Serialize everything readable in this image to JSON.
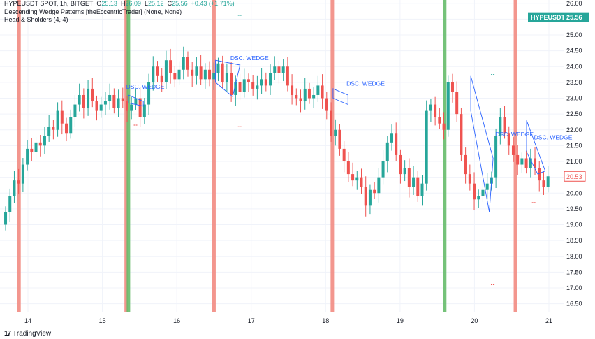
{
  "legend": {
    "symbol": "HYPEUSDT SPOT, 1h, BITGET",
    "o_label": "O",
    "o": "25.13",
    "h_label": "H",
    "h": "26.09",
    "l_label": "L",
    "l": "25.12",
    "c_label": "C",
    "c": "25.56",
    "change": "+0.43 (+1.71%)",
    "indicator1": "Descending Wedge Patterns [theEccentricTrader] (None, None)",
    "indicator2": "Head & Sholders (4, 4)"
  },
  "footer": {
    "logo": "17",
    "brand": "TradingView"
  },
  "colors": {
    "up": "#26a69a",
    "down": "#ef5350",
    "red_band": "#f28b82",
    "green_band": "#66bb6a",
    "wedge": "#2962ff",
    "price_badge": "#26a69a",
    "last_badge": "#ef5350"
  },
  "chart_data": {
    "type": "candlestick",
    "y_axis_ticks": [
      "26.00",
      "25.50",
      "25.00",
      "24.50",
      "24.00",
      "23.50",
      "23.00",
      "22.50",
      "22.00",
      "21.50",
      "21.00",
      "20.50",
      "20.00",
      "19.50",
      "19.00",
      "18.50",
      "18.00",
      "17.50",
      "17.00",
      "16.50"
    ],
    "ylim": [
      16.3,
      26.15
    ],
    "x_axis_ticks": [
      {
        "label": "14",
        "day": 14
      },
      {
        "label": "15",
        "day": 15
      },
      {
        "label": "16",
        "day": 16
      },
      {
        "label": "17",
        "day": 17
      },
      {
        "label": "18",
        "day": 18
      },
      {
        "label": "19",
        "day": 19
      },
      {
        "label": "20",
        "day": 20
      },
      {
        "label": "21",
        "day": 21
      }
    ],
    "xlim": [
      13.65,
      21.15
    ],
    "price_badges": [
      {
        "symbol": "HYPEUSDT",
        "value": "25.56",
        "price": 25.56,
        "color": "#26a69a"
      },
      {
        "symbol": "",
        "value": "20.53",
        "price": 20.53,
        "color": "#ef5350"
      }
    ],
    "red_bands": [
      13.88,
      15.32,
      16.5,
      18.09,
      20.55
    ],
    "green_bands": [
      15.35,
      19.6
    ],
    "pattern_labels": [
      {
        "text": "DSC. WEDGE",
        "day": 15.32,
        "price": 23.3
      },
      {
        "text": "DSC. WEDGE",
        "day": 16.72,
        "price": 24.2
      },
      {
        "text": "DSC. WEDGE",
        "day": 18.28,
        "price": 23.4
      },
      {
        "text": "DSC. WEDGE",
        "day": 20.28,
        "price": 21.8
      },
      {
        "text": "DSC. WEDGE",
        "day": 20.8,
        "price": 21.7
      }
    ],
    "wedges": [
      [
        [
          15.35,
          23.1
        ],
        [
          15.55,
          22.9
        ],
        [
          15.55,
          22.75
        ],
        [
          15.35,
          22.85
        ]
      ],
      [
        [
          16.52,
          24.2
        ],
        [
          16.85,
          24.05
        ],
        [
          16.75,
          23.05
        ],
        [
          16.52,
          23.5
        ]
      ],
      [
        [
          18.1,
          23.3
        ],
        [
          18.3,
          23.1
        ],
        [
          18.3,
          22.8
        ],
        [
          18.1,
          23.0
        ]
      ],
      [
        [
          19.95,
          23.7
        ],
        [
          20.25,
          21.1
        ],
        [
          20.2,
          19.4
        ],
        [
          19.95,
          22.6
        ]
      ],
      [
        [
          20.7,
          22.3
        ],
        [
          20.95,
          20.7
        ],
        [
          20.85,
          20.6
        ],
        [
          20.7,
          21.3
        ]
      ]
    ],
    "markers": [
      {
        "day": 16.85,
        "price": 25.62,
        "color": "#26a69a"
      },
      {
        "day": 16.85,
        "price": 22.1,
        "color": "#ef5350"
      },
      {
        "day": 15.45,
        "price": 22.15,
        "color": "#ef5350"
      },
      {
        "day": 20.25,
        "price": 23.75,
        "color": "#26a69a"
      },
      {
        "day": 20.25,
        "price": 17.1,
        "color": "#ef5350"
      },
      {
        "day": 20.8,
        "price": 19.7,
        "color": "#ef5350"
      }
    ],
    "closes": [
      19.4,
      19.9,
      20.4,
      20.3,
      20.9,
      21.4,
      21.3,
      21.6,
      21.5,
      21.8,
      22.1,
      22.0,
      22.6,
      22.2,
      21.9,
      22.4,
      22.8,
      23.1,
      22.7,
      23.3,
      22.9,
      22.6,
      22.8,
      22.9,
      23.1,
      22.7,
      23.0,
      22.9,
      22.6,
      22.8,
      23.0,
      22.4,
      22.8,
      23.5,
      24.0,
      23.7,
      23.5,
      24.2,
      23.8,
      23.6,
      23.9,
      24.3,
      23.9,
      23.7,
      24.0,
      23.6,
      23.9,
      23.6,
      23.8,
      24.1,
      23.5,
      23.8,
      23.1,
      23.5,
      23.2,
      23.6,
      23.5,
      23.3,
      23.4,
      23.6,
      23.4,
      23.8,
      24.0,
      23.8,
      24.0,
      23.4,
      23.1,
      23.0,
      22.9,
      23.3,
      23.0,
      23.1,
      23.4,
      23.0,
      22.6,
      21.8,
      22.0,
      21.4,
      21.0,
      20.6,
      20.4,
      20.5,
      20.2,
      19.6,
      20.1,
      20.0,
      20.5,
      21.0,
      21.6,
      21.9,
      21.2,
      20.6,
      20.8,
      20.2,
      20.5,
      19.9,
      20.3,
      22.6,
      22.8,
      22.4,
      22.2,
      22.0,
      23.5,
      23.2,
      22.5,
      21.2,
      20.6,
      20.3,
      19.8,
      19.9,
      20.1,
      20.3,
      20.5,
      21.8,
      22.4,
      21.9,
      21.5,
      21.2,
      20.9,
      21.1,
      20.8,
      21.1,
      20.8,
      20.4,
      20.2,
      20.53
    ],
    "series_start_day": 13.7,
    "bar_step_day": 0.0583
  }
}
